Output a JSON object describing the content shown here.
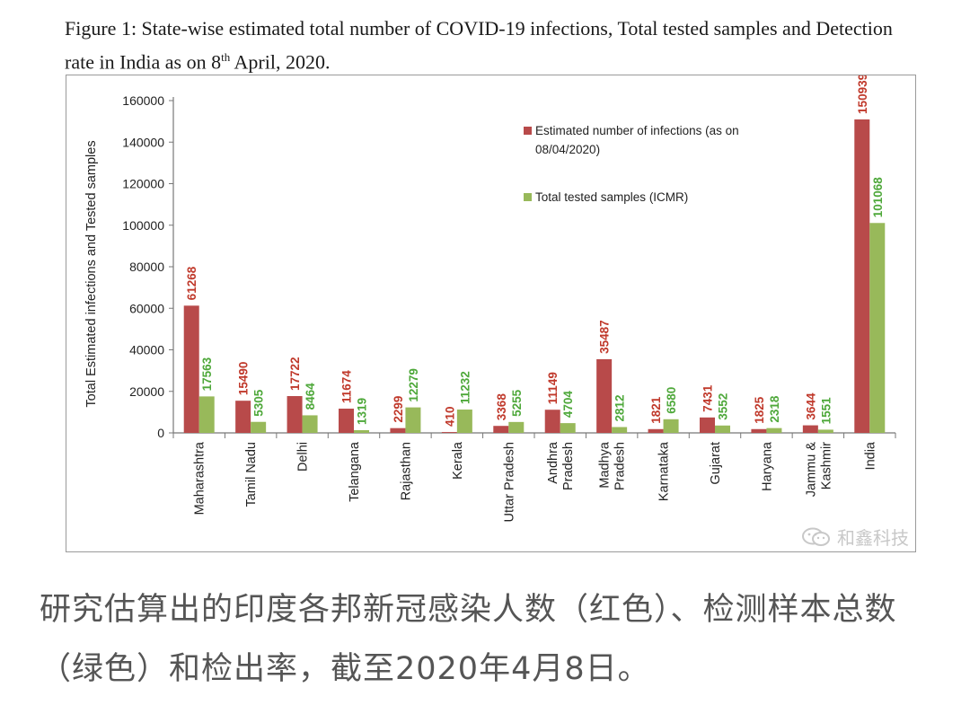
{
  "figure": {
    "title_part1": "Figure 1: State-wise estimated total number of COVID-19 infections, Total tested samples and Detection rate in India as on 8",
    "title_sup": "th",
    "title_part2": " April, 2020."
  },
  "colors": {
    "infections": "#b84a4a",
    "tested": "#98b95a",
    "infections_label": "#c0392b",
    "tested_label": "#4ea83a"
  },
  "chart_data": {
    "type": "bar",
    "title": "State-wise estimated total number of COVID-19 infections and total tested samples",
    "ylabel": "Total Estimated infections and Tested samples",
    "xlabel": "",
    "ylim": [
      0,
      160000
    ],
    "yticks": [
      0,
      20000,
      40000,
      60000,
      80000,
      100000,
      120000,
      140000,
      160000
    ],
    "ytick_labels": [
      "0",
      "20000",
      "40000",
      "60000",
      "80000",
      "100000",
      "120000",
      "140000",
      "160000"
    ],
    "categories": [
      "Maharashtra",
      "Tamil Nadu",
      "Delhi",
      "Telangana",
      "Rajasthan",
      "Kerala",
      "Uttar Pradesh",
      "Andhra Pradesh",
      "Madhya Pradesh",
      "Karnataka",
      "Gujarat",
      "Haryana",
      "Jammu & Kashmir",
      "India"
    ],
    "category_lines": [
      [
        "Maharashtra"
      ],
      [
        "Tamil Nadu"
      ],
      [
        "Delhi"
      ],
      [
        "Telangana"
      ],
      [
        "Rajasthan"
      ],
      [
        "Kerala"
      ],
      [
        "Uttar Pradesh"
      ],
      [
        "Andhra",
        "Pradesh"
      ],
      [
        "Madhya",
        "Pradesh"
      ],
      [
        "Karnataka"
      ],
      [
        "Gujarat"
      ],
      [
        "Haryana"
      ],
      [
        "Jammu &",
        "Kashmir"
      ],
      [
        "India"
      ]
    ],
    "series": [
      {
        "name": "Estimated number of infections (as on 08/04/2020)",
        "legend_lines": [
          "Estimated number of infections (as on",
          "08/04/2020)"
        ],
        "values": [
          61268,
          15490,
          17722,
          11674,
          2299,
          410,
          3368,
          11149,
          35487,
          1821,
          7431,
          1825,
          3644,
          150939
        ]
      },
      {
        "name": "Total tested samples (ICMR)",
        "legend_lines": [
          "Total tested samples (ICMR)"
        ],
        "values": [
          17563,
          5305,
          8464,
          1319,
          12279,
          11232,
          5255,
          4704,
          2812,
          6580,
          3552,
          2318,
          1551,
          101068
        ]
      }
    ],
    "legend_position": "top-right",
    "grid": false
  },
  "watermark": {
    "text": "和鑫科技"
  },
  "caption": {
    "text": "研究估算出的印度各邦新冠感染人数（红色）、检测样本总数（绿色）和检出率，截至2020年4月8日。"
  }
}
